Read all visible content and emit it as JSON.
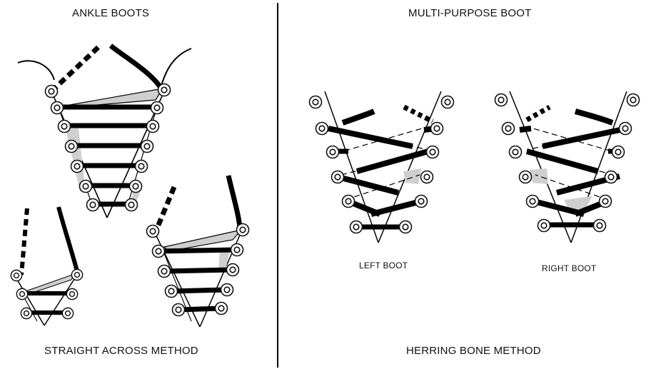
{
  "left_panel": {
    "heading": "ANKLE BOOTS",
    "caption": "STRAIGHT ACROSS METHOD"
  },
  "right_panel": {
    "heading": "MULTI-PURPOSE BOOT",
    "caption": "HERRING BONE METHOD",
    "left_boot_label": "LEFT BOOT",
    "right_boot_label": "RIGHT BOOT"
  }
}
